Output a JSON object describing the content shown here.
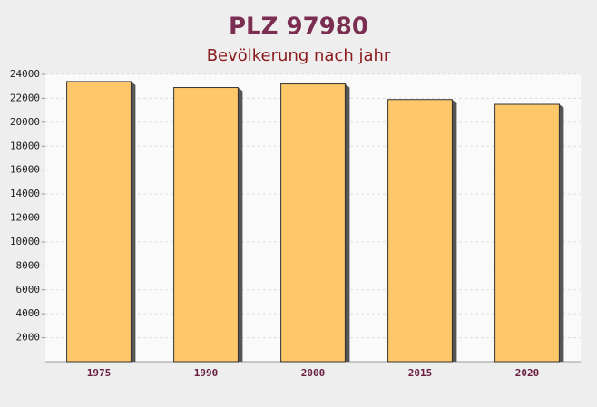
{
  "chart_data": {
    "type": "bar",
    "title": "PLZ 97980",
    "subtitle": "Bevölkerung nach jahr",
    "categories": [
      "1975",
      "1990",
      "2000",
      "2015",
      "2020"
    ],
    "values": [
      23400,
      22900,
      23200,
      21900,
      21500
    ],
    "color": "#fdc76a",
    "ylim": [
      0,
      24000
    ],
    "yticks": [
      2000,
      4000,
      6000,
      8000,
      10000,
      12000,
      14000,
      16000,
      18000,
      20000,
      22000,
      24000
    ],
    "grid": true
  }
}
